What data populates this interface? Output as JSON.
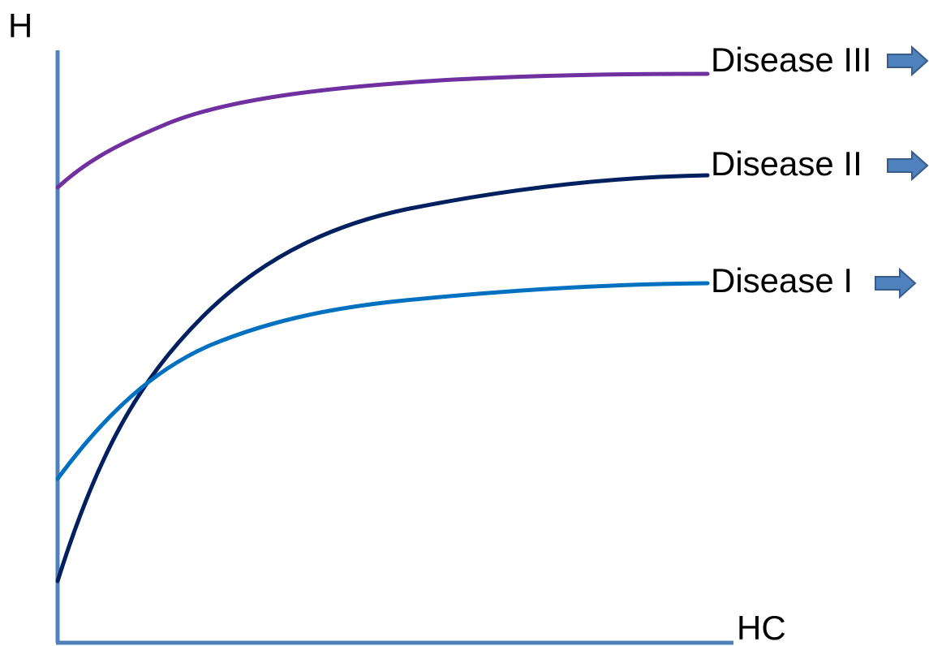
{
  "axes": {
    "y_label": "H",
    "x_label": "HC",
    "axis_color": "#4f81bd"
  },
  "curves": [
    {
      "label": "Disease III",
      "color": "#7030a0"
    },
    {
      "label": "Disease II",
      "color": "#002060"
    },
    {
      "label": "Disease I",
      "color": "#0070c0"
    }
  ],
  "arrow_colors": {
    "fill": "#4f81bd",
    "stroke": "#385d8a"
  }
}
